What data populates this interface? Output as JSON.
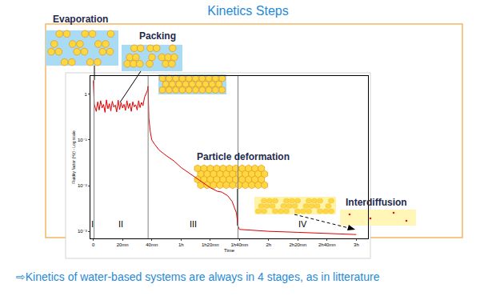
{
  "chart_data": {
    "type": "line",
    "title": "Kinetics Steps",
    "x_label": "Time",
    "y_label": "Fluidity factor (Hz) - Log scale",
    "log": "y",
    "grid": false,
    "color": "#e00000",
    "x": [
      0,
      0.3,
      0.6,
      1,
      2,
      3,
      4,
      5,
      6,
      7,
      8,
      9,
      10,
      11,
      12,
      13,
      14,
      15,
      16,
      17,
      18,
      19,
      20,
      21,
      22,
      23,
      24,
      25,
      26,
      27,
      28,
      29,
      30,
      31,
      32,
      33,
      34,
      35,
      36,
      37,
      37.5,
      38,
      39,
      40,
      42,
      45,
      50,
      55,
      60,
      70,
      75,
      80,
      85,
      88,
      92,
      95,
      98,
      99,
      100,
      120,
      140,
      160,
      180
    ],
    "values": [
      2.0,
      1.0,
      0.6,
      0.55,
      0.42,
      0.68,
      0.45,
      0.72,
      0.5,
      0.6,
      0.4,
      0.75,
      0.48,
      0.62,
      0.43,
      0.7,
      0.52,
      0.58,
      0.41,
      0.74,
      0.46,
      0.66,
      0.5,
      0.6,
      0.44,
      0.72,
      0.49,
      0.63,
      0.42,
      0.68,
      0.53,
      0.59,
      0.45,
      0.72,
      0.51,
      0.66,
      0.56,
      0.85,
      1.0,
      1.2,
      1.5,
      0.3,
      0.15,
      0.1,
      0.08,
      0.06,
      0.045,
      0.035,
      0.025,
      0.015,
      0.012,
      0.009,
      0.0075,
      0.0072,
      0.006,
      0.0045,
      0.0025,
      0.0013,
      0.0011,
      0.001,
      0.00095,
      0.0009,
      0.00085
    ],
    "xlim": [
      -2,
      188
    ],
    "xticks": [
      {
        "value": 0,
        "label": "0"
      },
      {
        "value": 20,
        "label": "20mn"
      },
      {
        "value": 40,
        "label": "40mn"
      },
      {
        "value": 60,
        "label": "1h"
      },
      {
        "value": 80,
        "label": "1h20mn"
      },
      {
        "value": 100,
        "label": "1h40mn"
      },
      {
        "value": 120,
        "label": "2h"
      },
      {
        "value": 140,
        "label": "2h20mn"
      },
      {
        "value": 160,
        "label": "2h40mn"
      },
      {
        "value": 180,
        "label": "3h"
      }
    ],
    "ylim": [
      0.0007,
      2.5
    ],
    "yticks": [
      1,
      {
        "value": 0.1,
        "label": "10⁻¹"
      },
      {
        "value": 0.01,
        "label": "10⁻²"
      },
      {
        "value": 0.001,
        "label": "10⁻³"
      }
    ],
    "stage_lines": [
      0.5,
      37.5,
      99
    ],
    "stage_labels": [
      "I",
      "II",
      "III",
      "IV"
    ],
    "annotations": [
      "Evaporation",
      "Packing",
      "Particle deformation",
      "Interdiffusion"
    ],
    "caption": "⇨Kinetics of water-based systems are always in 4 stages, as in litterature"
  }
}
